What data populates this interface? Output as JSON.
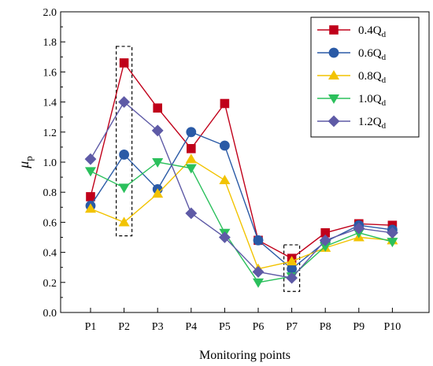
{
  "chart_data": {
    "type": "line",
    "xlabel": "Monitoring points",
    "ylabel_main": "μ",
    "ylabel_sub": "p",
    "categories": [
      "P1",
      "P2",
      "P3",
      "P4",
      "P5",
      "P6",
      "P7",
      "P8",
      "P9",
      "P10"
    ],
    "ylim": [
      0,
      2.0
    ],
    "yticks": [
      "0.0",
      "0.2",
      "0.4",
      "0.6",
      "0.8",
      "1.0",
      "1.2",
      "1.4",
      "1.6",
      "1.8",
      "2.0"
    ],
    "grid": false,
    "legend_position": "top-right",
    "series": [
      {
        "name_main": "0.4Q",
        "name_sub": "d",
        "color": "#c0001a",
        "marker": "square",
        "values": [
          0.77,
          1.66,
          1.36,
          1.09,
          1.39,
          0.48,
          0.36,
          0.53,
          0.59,
          0.58
        ]
      },
      {
        "name_main": "0.6Q",
        "name_sub": "d",
        "color": "#2a5aa6",
        "marker": "circle",
        "values": [
          0.71,
          1.05,
          0.82,
          1.2,
          1.11,
          0.48,
          0.29,
          0.47,
          0.58,
          0.55
        ]
      },
      {
        "name_main": "0.8Q",
        "name_sub": "d",
        "color": "#f2c300",
        "marker": "triangle-up",
        "values": [
          0.69,
          0.6,
          0.79,
          1.02,
          0.88,
          0.29,
          0.34,
          0.43,
          0.5,
          0.48
        ]
      },
      {
        "name_main": "1.0Q",
        "name_sub": "d",
        "color": "#2bc05c",
        "marker": "triangle-down",
        "values": [
          0.94,
          0.83,
          1.0,
          0.96,
          0.53,
          0.2,
          0.24,
          0.44,
          0.53,
          0.47
        ]
      },
      {
        "name_main": "1.2Q",
        "name_sub": "d",
        "color": "#5e5aa6",
        "marker": "diamond",
        "values": [
          1.02,
          1.4,
          1.21,
          0.66,
          0.5,
          0.27,
          0.23,
          0.48,
          0.56,
          0.53
        ]
      }
    ],
    "highlight_boxes": [
      {
        "category": "P2",
        "y_range": [
          0.51,
          1.77
        ]
      },
      {
        "category": "P7",
        "y_range": [
          0.14,
          0.45
        ]
      }
    ]
  }
}
